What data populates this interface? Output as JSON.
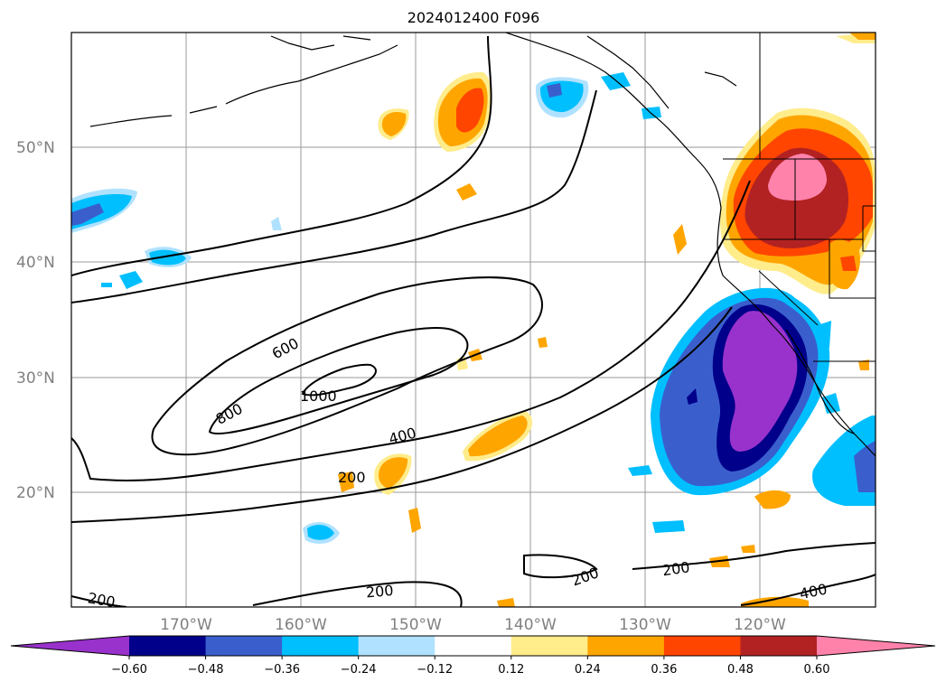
{
  "title": "2024012400 F096",
  "map": {
    "lat_labels": [
      "50°N",
      "40°N",
      "30°N",
      "20°N"
    ],
    "lon_labels": [
      "170°W",
      "160°W",
      "150°W",
      "140°W",
      "130°W",
      "120°W"
    ],
    "contour_labels": [
      "600",
      "800",
      "1000",
      "400",
      "200",
      "200",
      "200",
      "200",
      "400",
      "200"
    ]
  },
  "colorbar": {
    "ticks": [
      "−0.60",
      "−0.48",
      "−0.36",
      "−0.24",
      "−0.12",
      "0.12",
      "0.24",
      "0.36",
      "0.48",
      "0.60"
    ],
    "colors": [
      "#9932CC",
      "#00008B",
      "#3A5FCD",
      "#00BFFF",
      "#B0E2FF",
      "#FFFFFF",
      "#FFEC8B",
      "#FFA500",
      "#FF4500",
      "#B22222",
      "#FF82AB"
    ]
  }
}
